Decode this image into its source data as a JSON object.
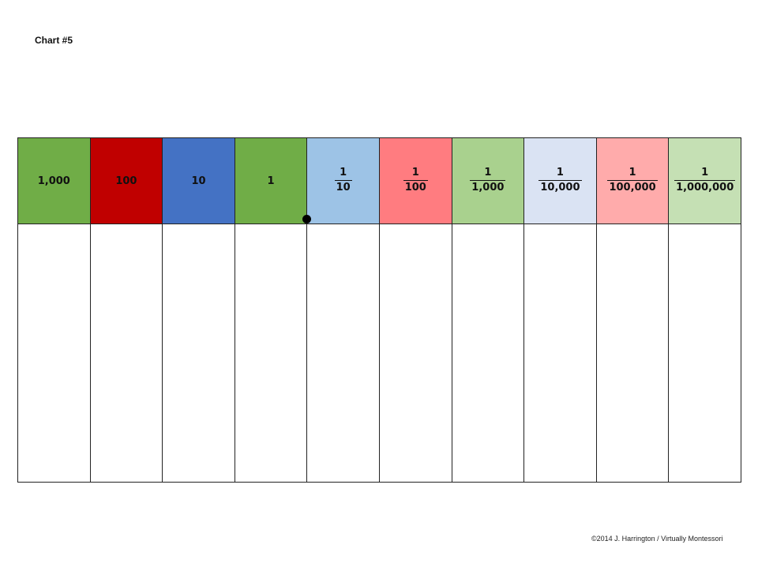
{
  "title": "Chart #5",
  "columns": [
    {
      "kind": "whole",
      "label": "1,000",
      "color": "#70ad47"
    },
    {
      "kind": "whole",
      "label": "100",
      "color": "#c00000"
    },
    {
      "kind": "whole",
      "label": "10",
      "color": "#4472c4"
    },
    {
      "kind": "whole",
      "label": "1",
      "color": "#70ad47"
    },
    {
      "kind": "fraction",
      "numerator": "1",
      "denominator": "10",
      "color": "#9dc3e6"
    },
    {
      "kind": "fraction",
      "numerator": "1",
      "denominator": "100",
      "color": "#ff7c80"
    },
    {
      "kind": "fraction",
      "numerator": "1",
      "denominator": "1,000",
      "color": "#a9d18e"
    },
    {
      "kind": "fraction",
      "numerator": "1",
      "denominator": "10,000",
      "color": "#dae3f3"
    },
    {
      "kind": "fraction",
      "numerator": "1",
      "denominator": "100,000",
      "color": "#ffabab"
    },
    {
      "kind": "fraction",
      "numerator": "1",
      "denominator": "1,000,000",
      "color": "#c5e0b4"
    }
  ],
  "footer": {
    "copyright": "©2014 J. Harrington / Virtually Montessori"
  }
}
